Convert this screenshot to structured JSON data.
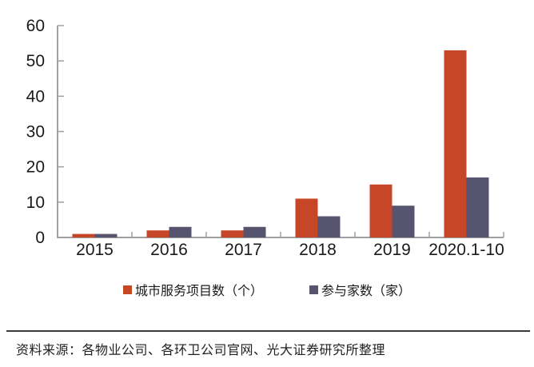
{
  "chart_data": {
    "type": "bar",
    "title": "",
    "categories": [
      "2015",
      "2016",
      "2017",
      "2018",
      "2019",
      "2020.1-10"
    ],
    "series": [
      {
        "name": "城市服务项目数（个）",
        "color": "#C64628",
        "values": [
          1,
          2,
          2,
          11,
          15,
          53
        ]
      },
      {
        "name": "参与家数（家）",
        "color": "#575470",
        "values": [
          1,
          3,
          3,
          6,
          9,
          17
        ]
      }
    ],
    "ylim": [
      0,
      60
    ],
    "yticks": [
      0,
      10,
      20,
      30,
      40,
      50,
      60
    ],
    "grid": false,
    "legend_position": "bottom",
    "axis_color": "#A0A0A0",
    "label_color": "#1A1A1A"
  },
  "footer": {
    "source_note": "资料来源：各物业公司、各环卫公司官网、光大证券研究所整理"
  }
}
